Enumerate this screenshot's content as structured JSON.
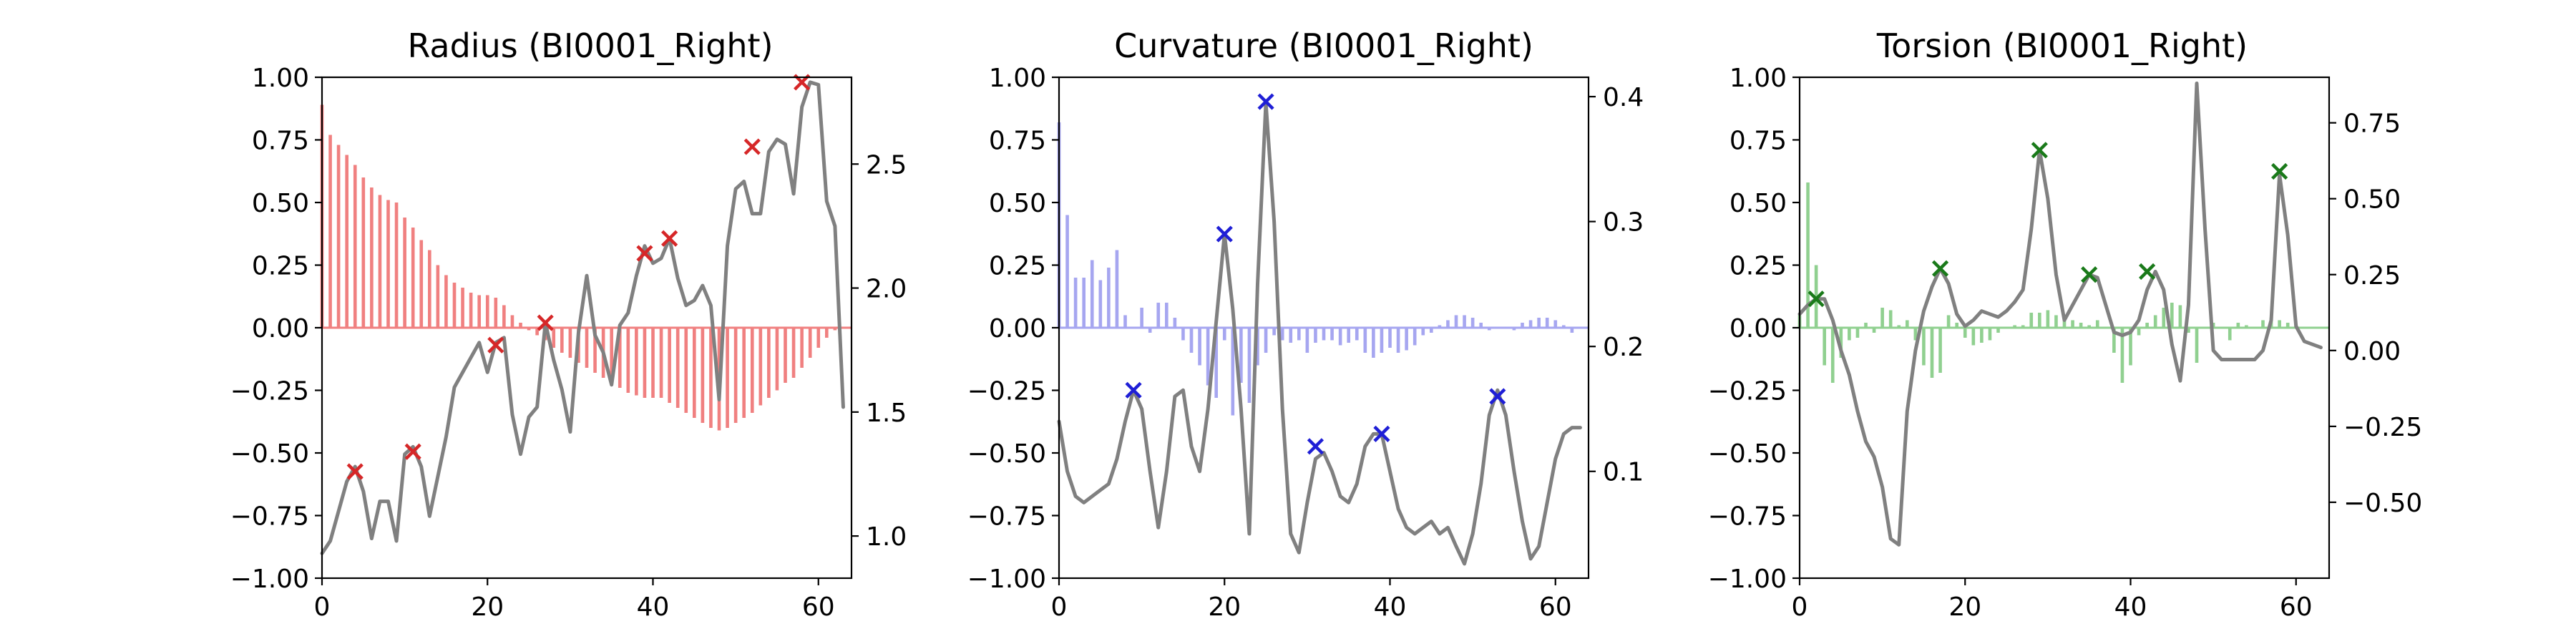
{
  "figure": {
    "panels": [
      {
        "title": "Radius (BI0001_Right)"
      },
      {
        "title": "Curvature (BI0001_Right)"
      },
      {
        "title": "Torsion (BI0001_Right)"
      }
    ]
  },
  "chart_data": [
    {
      "type": "line",
      "title": "Radius (BI0001_Right)",
      "xlabel": "",
      "ylabel": "",
      "xlim": [
        0,
        64
      ],
      "ylim": [
        -1.0,
        1.0
      ],
      "y2lim": [
        0.83,
        2.85
      ],
      "x_ticks": [
        0,
        20,
        40,
        60
      ],
      "y_ticks": [
        -1.0,
        -0.75,
        -0.5,
        -0.25,
        0.0,
        0.25,
        0.5,
        0.75,
        1.0
      ],
      "y2_ticks": [
        1.0,
        1.5,
        2.0,
        2.5
      ],
      "grid": false,
      "colors": {
        "bars": "#f08080",
        "zero_line": "#f08080",
        "line": "#808080",
        "markers": "#d62728"
      },
      "series": [
        {
          "type": "bar",
          "axis": "left",
          "values": [
            0.89,
            0.77,
            0.73,
            0.69,
            0.65,
            0.6,
            0.56,
            0.53,
            0.51,
            0.5,
            0.44,
            0.4,
            0.35,
            0.31,
            0.25,
            0.21,
            0.18,
            0.16,
            0.14,
            0.13,
            0.13,
            0.12,
            0.09,
            0.05,
            0.02,
            -0.01,
            -0.03,
            -0.05,
            -0.08,
            -0.1,
            -0.12,
            -0.14,
            -0.16,
            -0.18,
            -0.2,
            -0.22,
            -0.24,
            -0.26,
            -0.27,
            -0.28,
            -0.28,
            -0.28,
            -0.3,
            -0.32,
            -0.34,
            -0.36,
            -0.38,
            -0.4,
            -0.41,
            -0.4,
            -0.38,
            -0.36,
            -0.34,
            -0.31,
            -0.28,
            -0.25,
            -0.22,
            -0.2,
            -0.16,
            -0.12,
            -0.08,
            -0.04,
            -0.01,
            0.0
          ]
        },
        {
          "type": "line",
          "axis": "right",
          "values": [
            0.93,
            0.98,
            1.1,
            1.22,
            1.28,
            1.18,
            0.99,
            1.14,
            1.14,
            0.98,
            1.33,
            1.36,
            1.28,
            1.08,
            1.24,
            1.4,
            1.6,
            1.66,
            1.72,
            1.78,
            1.66,
            1.78,
            1.8,
            1.49,
            1.33,
            1.48,
            1.52,
            1.86,
            1.71,
            1.59,
            1.42,
            1.82,
            2.05,
            1.81,
            1.74,
            1.61,
            1.85,
            1.9,
            2.05,
            2.17,
            2.1,
            2.12,
            2.2,
            2.04,
            1.93,
            1.95,
            2.01,
            1.93,
            1.55,
            2.17,
            2.4,
            2.43,
            2.3,
            2.3,
            2.55,
            2.6,
            2.58,
            2.38,
            2.73,
            2.83,
            2.82,
            2.35,
            2.25,
            1.52
          ]
        },
        {
          "type": "scatter",
          "axis": "right",
          "marker": "x",
          "x": [
            4,
            11,
            21,
            27,
            39,
            42,
            52,
            58
          ],
          "values": [
            1.26,
            1.34,
            1.77,
            1.86,
            2.14,
            2.2,
            2.57,
            2.83
          ]
        }
      ]
    },
    {
      "type": "line",
      "title": "Curvature (BI0001_Right)",
      "xlabel": "",
      "ylabel": "",
      "xlim": [
        0,
        64
      ],
      "ylim": [
        -1.0,
        1.0
      ],
      "y2lim": [
        0.0145,
        0.4155
      ],
      "x_ticks": [
        0,
        20,
        40,
        60
      ],
      "y_ticks": [
        -1.0,
        -0.75,
        -0.5,
        -0.25,
        0.0,
        0.25,
        0.5,
        0.75,
        1.0
      ],
      "y2_ticks": [
        0.1,
        0.2,
        0.3,
        0.4
      ],
      "grid": false,
      "colors": {
        "bars": "#a6a6f0",
        "zero_line": "#a6a6f0",
        "line": "#808080",
        "markers": "#1f1fd6"
      },
      "series": [
        {
          "type": "bar",
          "axis": "left",
          "values": [
            0.82,
            0.45,
            0.2,
            0.2,
            0.27,
            0.19,
            0.24,
            0.31,
            0.05,
            0.0,
            0.08,
            -0.02,
            0.1,
            0.1,
            0.04,
            -0.05,
            -0.1,
            -0.15,
            -0.23,
            -0.28,
            -0.05,
            -0.35,
            -0.22,
            -0.3,
            -0.15,
            -0.1,
            -0.03,
            -0.05,
            -0.06,
            -0.05,
            -0.1,
            -0.06,
            -0.05,
            -0.05,
            -0.07,
            -0.06,
            -0.05,
            -0.1,
            -0.12,
            -0.1,
            -0.08,
            -0.1,
            -0.09,
            -0.07,
            -0.03,
            -0.02,
            0.01,
            0.03,
            0.05,
            0.05,
            0.04,
            0.02,
            -0.01,
            0.0,
            0.0,
            -0.01,
            0.02,
            0.03,
            0.04,
            0.04,
            0.03,
            0.01,
            -0.02,
            0.0
          ]
        },
        {
          "type": "line",
          "axis": "right",
          "values": [
            0.14,
            0.1,
            0.08,
            0.075,
            0.08,
            0.085,
            0.09,
            0.11,
            0.14,
            0.165,
            0.15,
            0.1,
            0.055,
            0.1,
            0.16,
            0.165,
            0.12,
            0.1,
            0.15,
            0.22,
            0.29,
            0.23,
            0.15,
            0.05,
            0.25,
            0.395,
            0.3,
            0.15,
            0.05,
            0.035,
            0.075,
            0.11,
            0.115,
            0.1,
            0.08,
            0.075,
            0.09,
            0.12,
            0.13,
            0.13,
            0.1,
            0.07,
            0.055,
            0.05,
            0.055,
            0.06,
            0.05,
            0.055,
            0.04,
            0.026,
            0.05,
            0.09,
            0.145,
            0.165,
            0.145,
            0.1,
            0.06,
            0.03,
            0.04,
            0.075,
            0.11,
            0.13,
            0.135,
            0.135
          ]
        },
        {
          "type": "scatter",
          "axis": "right",
          "marker": "x",
          "x": [
            9,
            20,
            25,
            31,
            39,
            53
          ],
          "values": [
            0.165,
            0.29,
            0.396,
            0.12,
            0.13,
            0.16
          ]
        }
      ]
    },
    {
      "type": "line",
      "title": "Torsion (BI0001_Right)",
      "xlabel": "",
      "ylabel": "",
      "xlim": [
        0,
        64
      ],
      "ylim": [
        -1.0,
        1.0
      ],
      "y2lim": [
        -0.75,
        0.9
      ],
      "x_ticks": [
        0,
        20,
        40,
        60
      ],
      "y_ticks": [
        -1.0,
        -0.75,
        -0.5,
        -0.25,
        0.0,
        0.25,
        0.5,
        0.75,
        1.0
      ],
      "y2_ticks": [
        -0.5,
        -0.25,
        0.0,
        0.25,
        0.5,
        0.75
      ],
      "grid": false,
      "colors": {
        "bars": "#90d090",
        "zero_line": "#90d090",
        "line": "#808080",
        "markers": "#1a7a1a"
      },
      "series": [
        {
          "type": "bar",
          "axis": "left",
          "values": [
            0.05,
            0.58,
            0.25,
            -0.15,
            -0.22,
            -0.12,
            -0.05,
            -0.04,
            0.02,
            -0.02,
            0.08,
            0.07,
            0.01,
            0.03,
            -0.05,
            -0.15,
            -0.2,
            -0.18,
            0.05,
            0.02,
            -0.04,
            -0.07,
            -0.06,
            -0.05,
            -0.02,
            0.0,
            0.01,
            0.01,
            0.06,
            0.06,
            0.07,
            0.05,
            0.04,
            0.03,
            0.02,
            0.01,
            0.03,
            0.0,
            -0.1,
            -0.22,
            -0.15,
            -0.03,
            0.02,
            0.05,
            0.08,
            0.1,
            0.09,
            -0.02,
            -0.14,
            0.0,
            0.02,
            0.0,
            -0.05,
            0.02,
            0.01,
            0.0,
            0.03,
            0.04,
            0.03,
            0.02,
            0.01,
            0.0,
            0.0,
            0.0
          ]
        },
        {
          "type": "line",
          "axis": "right",
          "values": [
            0.12,
            0.15,
            0.17,
            0.17,
            0.1,
            0.0,
            -0.08,
            -0.2,
            -0.3,
            -0.35,
            -0.45,
            -0.62,
            -0.64,
            -0.2,
            0.0,
            0.13,
            0.21,
            0.27,
            0.22,
            0.12,
            0.08,
            0.1,
            0.13,
            0.12,
            0.11,
            0.13,
            0.16,
            0.2,
            0.4,
            0.66,
            0.5,
            0.25,
            0.1,
            0.15,
            0.2,
            0.25,
            0.24,
            0.15,
            0.06,
            0.05,
            0.06,
            0.1,
            0.2,
            0.26,
            0.2,
            0.02,
            -0.1,
            0.15,
            0.88,
            0.4,
            0.0,
            -0.03,
            -0.03,
            -0.03,
            -0.03,
            -0.03,
            0.0,
            0.1,
            0.58,
            0.38,
            0.08,
            0.03,
            0.02,
            0.01
          ]
        },
        {
          "type": "scatter",
          "axis": "right",
          "marker": "x",
          "x": [
            2,
            17,
            29,
            35,
            42,
            58
          ],
          "values": [
            0.17,
            0.27,
            0.66,
            0.25,
            0.26,
            0.59
          ]
        }
      ]
    }
  ]
}
